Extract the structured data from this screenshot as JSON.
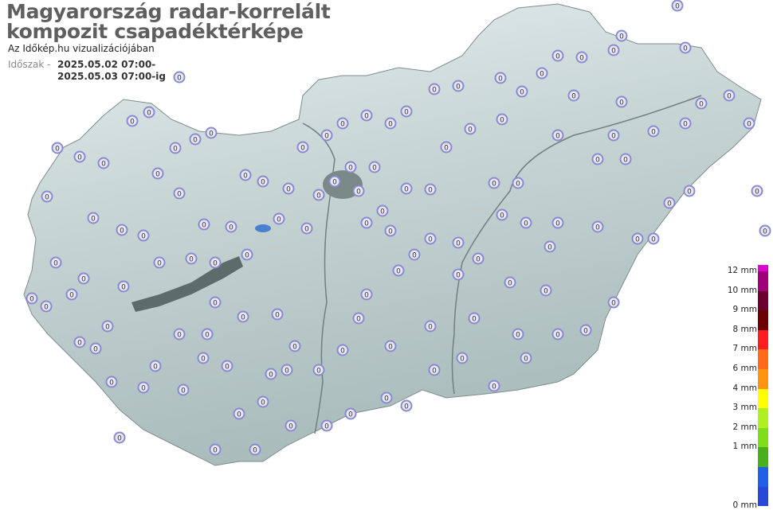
{
  "header": {
    "title_line1": "Magyarország radar-korrelált",
    "title_line2": "kompozit csapadéktérképe",
    "subtitle": "Az Időkép.hu vizualizációjában",
    "period_label": "Időszak -",
    "period_start": "2025.05.02 07:00-",
    "period_end": "2025.05.03 07:00-ig"
  },
  "map": {
    "land_color": "#c9d6d6",
    "lake_color": "#5d6b6b",
    "station_value": "0",
    "station_color": "#8a8ad0"
  },
  "legend": {
    "items": [
      {
        "label": "12 mm",
        "color": "#e000d0"
      },
      {
        "label": "10 mm",
        "color": "#a0007a"
      },
      {
        "label": "9 mm",
        "color": "#6a0030"
      },
      {
        "label": "8 mm",
        "color": "#6a0000"
      },
      {
        "label": "7 mm",
        "color": "#ff1c1c"
      },
      {
        "label": "6 mm",
        "color": "#ff6a1a"
      },
      {
        "label": "4 mm",
        "color": "#ff9410"
      },
      {
        "label": "3 mm",
        "color": "#ffff00"
      },
      {
        "label": "2 mm",
        "color": "#b0f020"
      },
      {
        "label": "1 mm",
        "color": "#7ede1a"
      },
      {
        "label": "",
        "color": "#48b018"
      },
      {
        "label": "",
        "color": "#2060e8"
      },
      {
        "label": "0 mm",
        "color": "#2848d8"
      }
    ]
  }
}
